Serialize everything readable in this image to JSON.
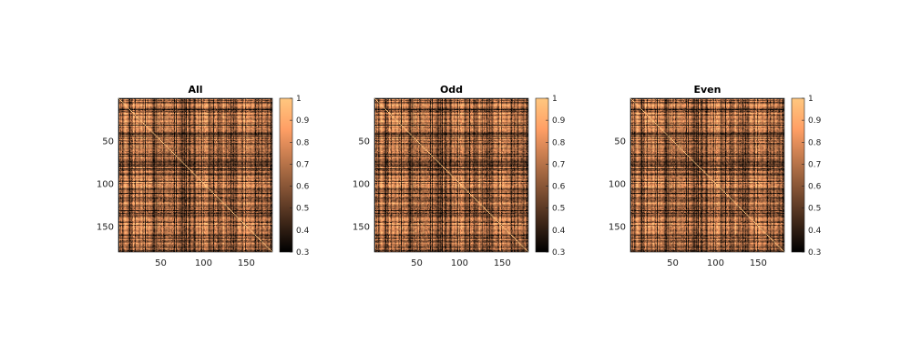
{
  "chart_data": [
    {
      "type": "heatmap",
      "title": "All",
      "matrix_size": 180,
      "x_ticks": [
        50,
        100,
        150
      ],
      "y_ticks": [
        50,
        100,
        150
      ],
      "colorbar": {
        "min": 0.3,
        "max": 1,
        "ticks": [
          "0.3",
          "0.4",
          "0.5",
          "0.6",
          "0.7",
          "0.8",
          "0.9",
          "1"
        ]
      },
      "colormap": "copper",
      "diagonal_value": 1
    },
    {
      "type": "heatmap",
      "title": "Odd",
      "matrix_size": 180,
      "x_ticks": [
        50,
        100,
        150
      ],
      "y_ticks": [
        50,
        100,
        150
      ],
      "colorbar": {
        "min": 0.3,
        "max": 1,
        "ticks": [
          "0.3",
          "0.4",
          "0.5",
          "0.6",
          "0.7",
          "0.8",
          "0.9",
          "1"
        ]
      },
      "colormap": "copper",
      "diagonal_value": 1
    },
    {
      "type": "heatmap",
      "title": "Even",
      "matrix_size": 180,
      "x_ticks": [
        50,
        100,
        150
      ],
      "y_ticks": [
        50,
        100,
        150
      ],
      "colorbar": {
        "min": 0.3,
        "max": 1,
        "ticks": [
          "0.3",
          "0.4",
          "0.5",
          "0.6",
          "0.7",
          "0.8",
          "0.9",
          "1"
        ]
      },
      "colormap": "copper",
      "diagonal_value": 1
    }
  ]
}
